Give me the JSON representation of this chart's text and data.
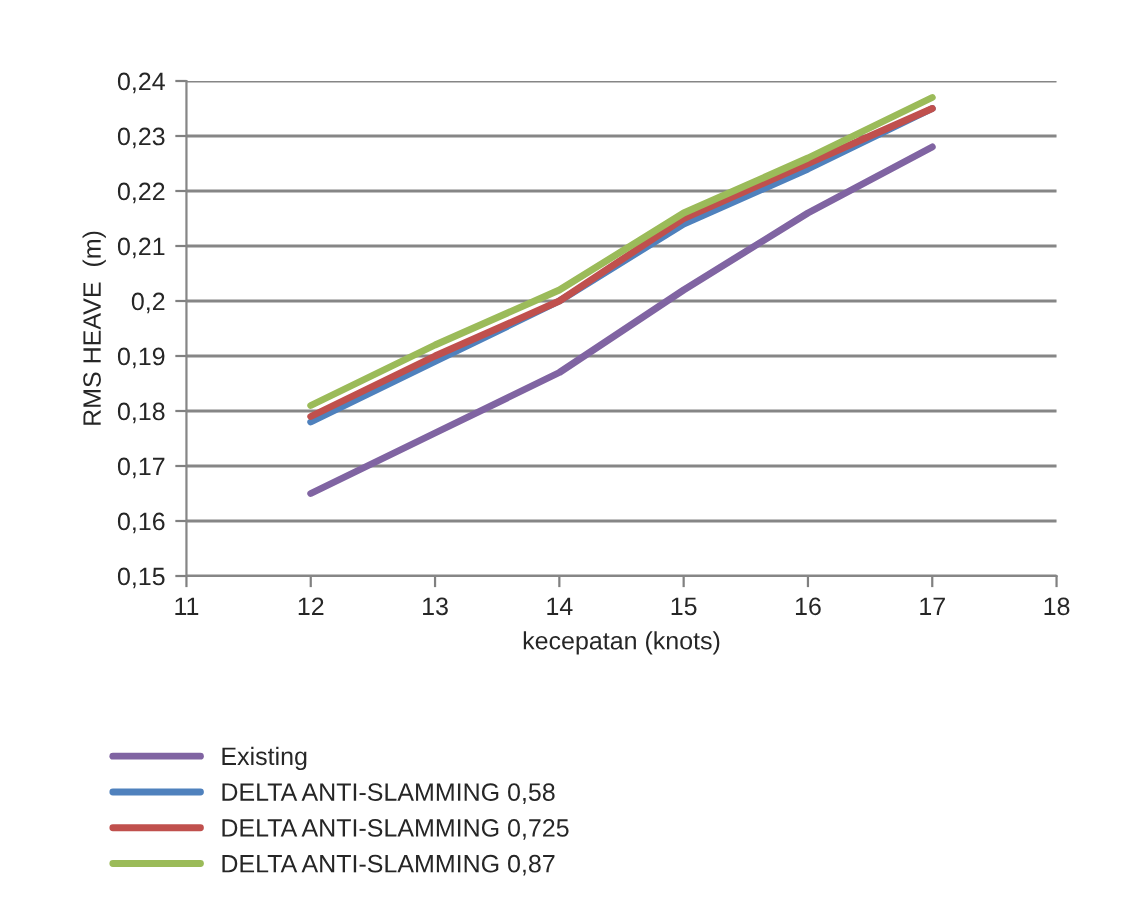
{
  "chart_data": {
    "type": "line",
    "xlabel": "kecepatan (knots)",
    "ylabel": "RMS HEAVE  (m)",
    "x": [
      12,
      13,
      14,
      15,
      16,
      17
    ],
    "series": [
      {
        "name": "Existing",
        "color": "#8064a2",
        "values": [
          0.165,
          0.176,
          0.187,
          0.202,
          0.216,
          0.228
        ]
      },
      {
        "name": "DELTA ANTI-SLAMMING 0,58",
        "color": "#4f81bd",
        "values": [
          0.178,
          0.189,
          0.2,
          0.214,
          0.224,
          0.235
        ]
      },
      {
        "name": "DELTA ANTI-SLAMMING 0,725",
        "color": "#c0504d",
        "values": [
          0.179,
          0.19,
          0.2,
          0.215,
          0.225,
          0.235
        ]
      },
      {
        "name": "DELTA ANTI-SLAMMING 0,87",
        "color": "#9bbb59",
        "values": [
          0.181,
          0.192,
          0.202,
          0.216,
          0.226,
          0.237
        ]
      }
    ],
    "xlim": [
      11,
      18
    ],
    "xticks": [
      11,
      12,
      13,
      14,
      15,
      16,
      17,
      18
    ],
    "ylim": [
      0.15,
      0.24
    ],
    "yticks": [
      {
        "value": 0.15,
        "label": "0,15"
      },
      {
        "value": 0.16,
        "label": "0,16"
      },
      {
        "value": 0.17,
        "label": "0,17"
      },
      {
        "value": 0.18,
        "label": "0,18"
      },
      {
        "value": 0.19,
        "label": "0,19"
      },
      {
        "value": 0.2,
        "label": "0,2"
      },
      {
        "value": 0.21,
        "label": "0,21"
      },
      {
        "value": 0.22,
        "label": "0,22"
      },
      {
        "value": 0.23,
        "label": "0,23"
      },
      {
        "value": 0.24,
        "label": "0,24"
      }
    ],
    "grid": "y",
    "legend": "bottom",
    "marker": "none",
    "line_style": "solid"
  }
}
